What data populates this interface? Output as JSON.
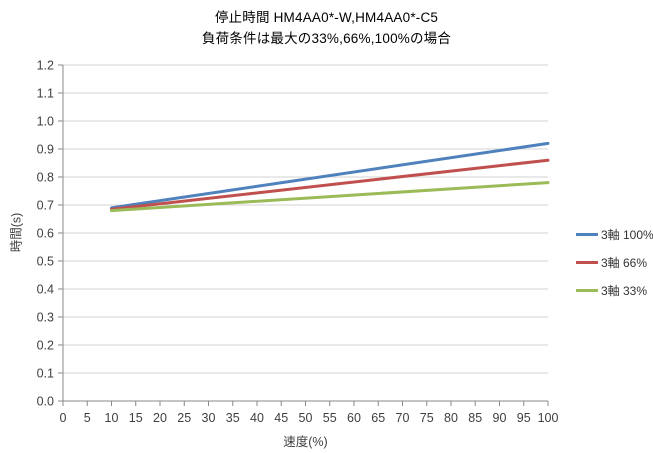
{
  "chart_data": {
    "type": "line",
    "title": "停止時間 HM4AA0*-W,HM4AA0*-C5",
    "subtitle": "負荷条件は最大の33%,66%,100%の場合",
    "xlabel": "速度(%)",
    "ylabel": "時間(s)",
    "xlim": [
      0,
      100
    ],
    "ylim": [
      0.0,
      1.2
    ],
    "x_ticks": [
      "0",
      "5",
      "10",
      "15",
      "20",
      "25",
      "30",
      "35",
      "40",
      "45",
      "50",
      "55",
      "60",
      "65",
      "70",
      "75",
      "80",
      "85",
      "90",
      "95",
      "100"
    ],
    "y_ticks": [
      "0.0",
      "0.1",
      "0.2",
      "0.3",
      "0.4",
      "0.5",
      "0.6",
      "0.7",
      "0.8",
      "0.9",
      "1.0",
      "1.1",
      "1.2"
    ],
    "grid": "horizontal",
    "legend_position": "right",
    "x": [
      10,
      100
    ],
    "series": [
      {
        "name": "3軸 100%",
        "color": "#4F81BD",
        "values": [
          0.69,
          0.92
        ]
      },
      {
        "name": "3軸 66%",
        "color": "#C0504D",
        "values": [
          0.685,
          0.86
        ]
      },
      {
        "name": "3軸 33%",
        "color": "#9BBB59",
        "values": [
          0.68,
          0.78
        ]
      }
    ],
    "colors": {
      "gridline": "#D3D3D3",
      "axis": "#898989",
      "tick_text": "#404040",
      "title_text": "#000000",
      "background": "#FFFFFF"
    }
  }
}
